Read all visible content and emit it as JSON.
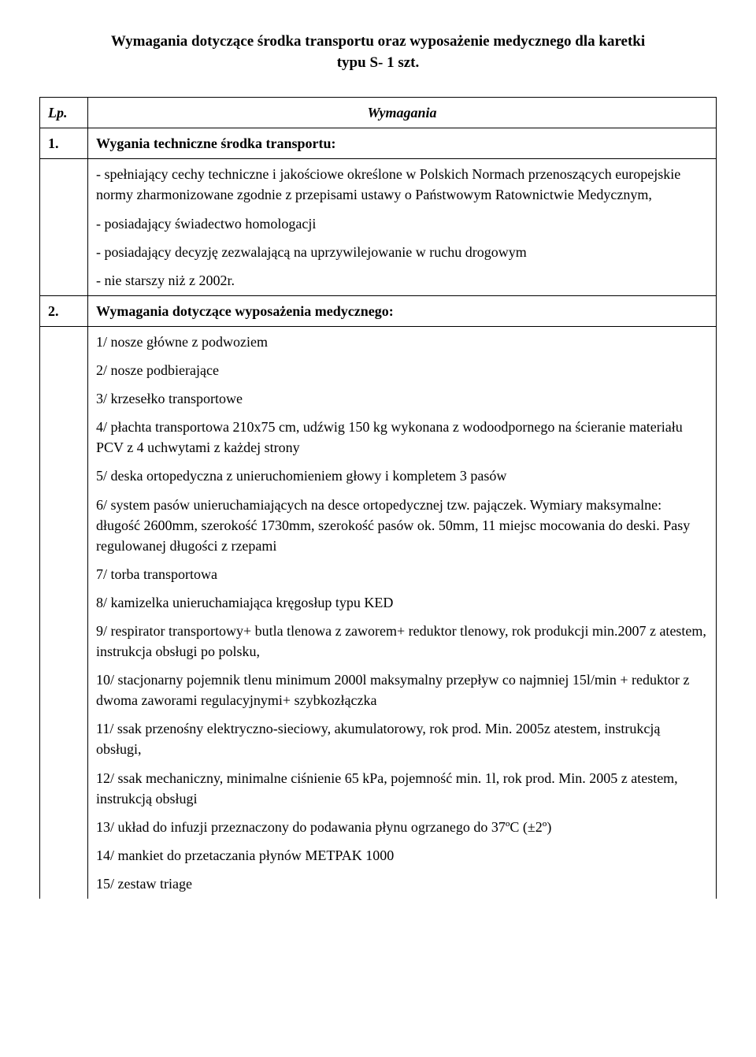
{
  "title_line1": "Wymagania dotyczące środka transportu oraz wyposażenie medycznego dla karetki",
  "title_line2": "typu S- 1 szt.",
  "header": {
    "lp": "Lp.",
    "wymagania": "Wymagania"
  },
  "rows": {
    "r1": {
      "num": "1.",
      "heading": "Wygania techniczne środka transportu:"
    },
    "r1_body": {
      "p1": "- spełniający cechy techniczne i jakościowe określone w Polskich Normach przenoszących europejskie normy zharmonizowane zgodnie z przepisami ustawy o Państwowym Ratownictwie Medycznym,",
      "p2": "- posiadający świadectwo homologacji",
      "p3": "- posiadający decyzję zezwalającą na uprzywilejowanie w ruchu drogowym",
      "p4": "- nie starszy niż z 2002r."
    },
    "r2": {
      "num": "2.",
      "heading": "Wymagania dotyczące wyposażenia medycznego:"
    },
    "r2_body": {
      "p1": "1/ nosze główne z podwoziem",
      "p2": "2/ nosze podbierające",
      "p3": "3/ krzesełko transportowe",
      "p4": "4/ płachta transportowa 210x75 cm, udźwig 150 kg wykonana z wodoodpornego na ścieranie materiału PCV z 4 uchwytami z każdej strony",
      "p5": "5/ deska ortopedyczna z unieruchomieniem głowy i kompletem 3 pasów",
      "p6": "6/ system pasów unieruchamiających na desce ortopedycznej tzw. pajączek. Wymiary maksymalne: długość 2600mm, szerokość 1730mm, szerokość pasów ok. 50mm, 11 miejsc mocowania do deski. Pasy regulowanej długości z rzepami",
      "p7": "7/ torba transportowa",
      "p8": "8/ kamizelka unieruchamiająca kręgosłup typu KED",
      "p9": "9/ respirator transportowy+ butla tlenowa z zaworem+ reduktor tlenowy, rok produkcji min.2007 z atestem, instrukcja obsługi po polsku,",
      "p10": "10/ stacjonarny pojemnik tlenu minimum 2000l maksymalny przepływ co najmniej 15l/min + reduktor z dwoma zaworami regulacyjnymi+ szybkozłączka",
      "p11": "11/ ssak przenośny elektryczno-sieciowy, akumulatorowy, rok prod. Min. 2005z atestem, instrukcją obsługi,",
      "p12": "12/ ssak mechaniczny, minimalne ciśnienie 65 kPa, pojemność min. 1l, rok prod. Min. 2005 z atestem, instrukcją obsługi",
      "p13": "13/ układ do infuzji przeznaczony do podawania płynu ogrzanego do 37ºC (±2º)",
      "p14": "14/ mankiet do przetaczania płynów METPAK 1000",
      "p15": "15/ zestaw triage"
    }
  }
}
